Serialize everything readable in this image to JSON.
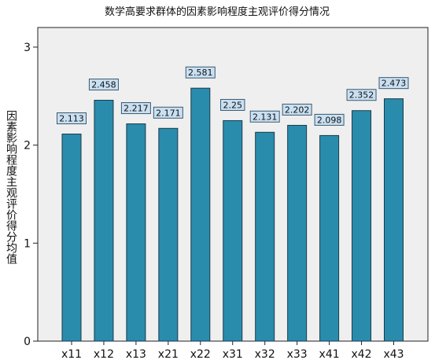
{
  "chart_data": {
    "type": "bar",
    "title": "数学高要求群体的因素影响程度主观评价得分情况",
    "xlabel": "",
    "ylabel": "因素影响程度主观评价得分均值",
    "categories": [
      "x11",
      "x12",
      "x13",
      "x21",
      "x22",
      "x31",
      "x32",
      "x33",
      "x41",
      "x42",
      "x43"
    ],
    "values": [
      2.113,
      2.458,
      2.217,
      2.171,
      2.581,
      2.25,
      2.131,
      2.202,
      2.098,
      2.352,
      2.473
    ],
    "value_labels": [
      "2.113",
      "2.458",
      "2.217",
      "2.171",
      "2.581",
      "2.25",
      "2.131",
      "2.202",
      "2.098",
      "2.352",
      "2.473"
    ],
    "ylim": [
      0,
      3.2
    ],
    "yticks": [
      "0",
      "1",
      "2",
      "3"
    ],
    "grid": false,
    "colors": {
      "bar_fill": "#2a8cad",
      "bar_stroke": "#1a3a4a",
      "plot_bg": "#efefef",
      "label_bg": "#c9e0f2",
      "label_stroke": "#3b5a70"
    }
  }
}
